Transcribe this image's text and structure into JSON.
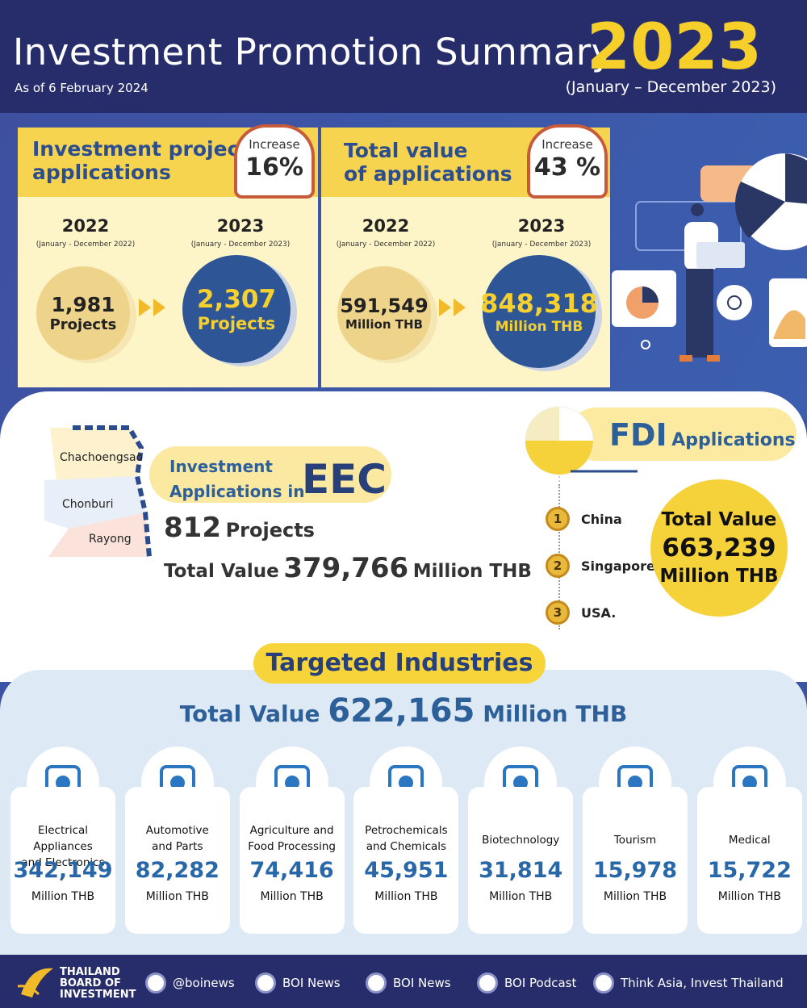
{
  "header": {
    "title": "Investment Promotion Summary",
    "year": "2023",
    "as_of": "As of 6 February 2024",
    "period": "(January – December 2023)"
  },
  "applications": {
    "title_lines": [
      "Investment project",
      "applications"
    ],
    "increase_label": "Increase",
    "increase": "16%",
    "prev": {
      "year": "2022",
      "period": "(January - December 2022)",
      "value": "1,981",
      "unit": "Projects"
    },
    "curr": {
      "year": "2023",
      "period": "(January - December 2023)",
      "value": "2,307",
      "unit": "Projects"
    }
  },
  "total_value": {
    "title_lines": [
      "Total value",
      "of applications"
    ],
    "increase_label": "Increase",
    "increase": "43 %",
    "prev": {
      "year": "2022",
      "period": "(January - December 2022)",
      "value": "591,549",
      "unit": "Million THB"
    },
    "curr": {
      "year": "2023",
      "period": "(January - December 2023)",
      "value": "848,318",
      "unit": "Million THB"
    }
  },
  "eec": {
    "map_labels": [
      "Chachoengsao",
      "Chonburi",
      "Rayong"
    ],
    "title_lines": [
      "Investment",
      "Applications in"
    ],
    "title_em": "EEC",
    "projects": "812",
    "projects_unit": "Projects",
    "total_label": "Total Value",
    "total": "379,766",
    "total_unit": "Million THB"
  },
  "fdi": {
    "title_em": "FDI",
    "title": "Applications",
    "ranks": [
      {
        "rank": "1",
        "country": "China"
      },
      {
        "rank": "2",
        "country": "Singapore"
      },
      {
        "rank": "3",
        "country": "USA."
      }
    ],
    "total_label": "Total Value",
    "total": "663,239",
    "total_unit": "Million THB"
  },
  "targeted": {
    "title": "Targeted Industries",
    "total_label": "Total Value",
    "total": "622,165",
    "total_unit": "Million THB",
    "industries": [
      {
        "name_lines": [
          "Electrical Appliances",
          "and Electronics"
        ],
        "value": "342,149",
        "unit": "Million THB"
      },
      {
        "name_lines": [
          "Automotive",
          "and Parts"
        ],
        "value": "82,282",
        "unit": "Million THB"
      },
      {
        "name_lines": [
          "Agriculture and",
          "Food Processing"
        ],
        "value": "74,416",
        "unit": "Million THB"
      },
      {
        "name_lines": [
          "Petrochemicals",
          "and Chemicals"
        ],
        "value": "45,951",
        "unit": "Million THB"
      },
      {
        "name_lines": [
          "Biotechnology"
        ],
        "value": "31,814",
        "unit": "Million THB"
      },
      {
        "name_lines": [
          "Tourism"
        ],
        "value": "15,978",
        "unit": "Million THB"
      },
      {
        "name_lines": [
          "Medical"
        ],
        "value": "15,722",
        "unit": "Million THB"
      }
    ]
  },
  "footer": {
    "org_lines": [
      "THAILAND",
      "BOARD OF",
      "INVESTMENT"
    ],
    "links": [
      "@boinews",
      "BOI News",
      "BOI News",
      "BOI Podcast",
      "Think Asia, Invest Thailand"
    ]
  }
}
